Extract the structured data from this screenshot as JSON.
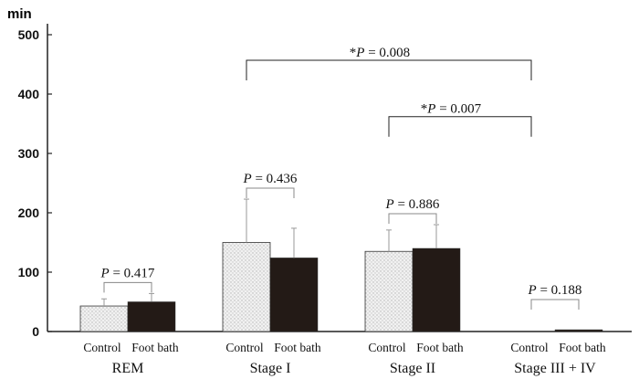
{
  "chart_data": {
    "type": "bar",
    "unit_label": "min",
    "ylim": [
      0,
      500
    ],
    "yticks": [
      "0",
      "100",
      "200",
      "300",
      "400",
      "500"
    ],
    "groups": [
      {
        "name": "REM",
        "bars": [
          {
            "label": "Control",
            "value": 43,
            "error": 12,
            "fill": "#e8e8e8"
          },
          {
            "label": "Foot bath",
            "value": 50,
            "error": 14,
            "fill": "#231a16"
          }
        ],
        "comparison": "P = 0.417"
      },
      {
        "name": "Stage I",
        "bars": [
          {
            "label": "Control",
            "value": 150,
            "error": 73,
            "fill": "#e8e8e8"
          },
          {
            "label": "Foot bath",
            "value": 124,
            "error": 50,
            "fill": "#231a16"
          }
        ],
        "comparison": "P = 0.436"
      },
      {
        "name": "Stage II",
        "bars": [
          {
            "label": "Control",
            "value": 135,
            "error": 36,
            "fill": "#e8e8e8"
          },
          {
            "label": "Foot bath",
            "value": 140,
            "error": 40,
            "fill": "#231a16"
          }
        ],
        "comparison": "P = 0.886"
      },
      {
        "name": "Stage III + IV",
        "bars": [
          {
            "label": "Control",
            "value": 0,
            "error": 0,
            "fill": "#e8e8e8"
          },
          {
            "label": "Foot bath",
            "value": 3,
            "error": 0,
            "fill": "#231a16"
          }
        ],
        "comparison": "P = 0.188"
      }
    ],
    "cross_comparisons": [
      {
        "from_group": 1,
        "to_group": 3,
        "level": 457,
        "label": "*P = 0.008"
      },
      {
        "from_group": 2,
        "to_group": 3,
        "level": 362,
        "label": "*P = 0.007"
      }
    ],
    "grid": false,
    "legend": "none"
  }
}
